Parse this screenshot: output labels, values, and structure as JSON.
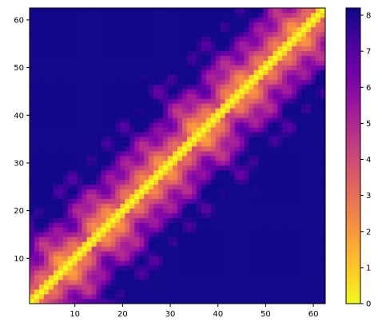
{
  "chart_data": {
    "type": "heatmap",
    "title": "",
    "xlabel": "",
    "ylabel": "",
    "x_range": [
      1,
      62
    ],
    "y_range": [
      1,
      62
    ],
    "x_ticks": [
      10,
      20,
      30,
      40,
      50,
      60
    ],
    "y_ticks": [
      10,
      20,
      30,
      40,
      50,
      60
    ],
    "colormap": "plasma_r",
    "colorbar": {
      "range": [
        0,
        8.2
      ],
      "ticks": [
        0,
        1,
        2,
        3,
        4,
        5,
        6,
        7,
        8
      ]
    },
    "colors": {
      "low": "#f0f921",
      "high": "#0d0887"
    },
    "matrix_size": 62,
    "description_values": {
      "diagonal": 0,
      "max_corner_near": [
        61,
        20
      ],
      "max_value": 8.1
    }
  }
}
